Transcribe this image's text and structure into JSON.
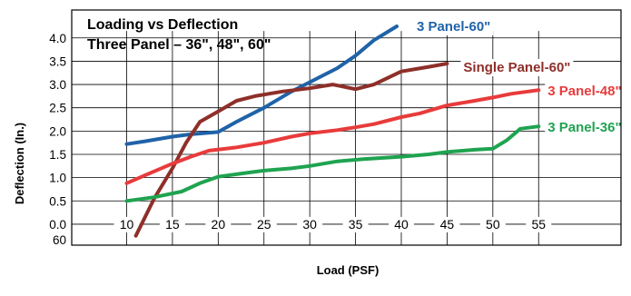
{
  "chart_data": {
    "type": "line",
    "title_line1": "Loading vs Deflection",
    "title_line2": "Three Panel – 36\", 48\", 60\"",
    "xlabel": "Load (PSF)",
    "ylabel": "Deflection (In.)",
    "x_ticks": [
      "10",
      "15",
      "20",
      "25",
      "30",
      "35",
      "40",
      "45",
      "50",
      "55"
    ],
    "y_ticks": [
      "4.0",
      "3.5",
      "3.0",
      "2.5",
      "2.0",
      "1.5",
      "1.0",
      "0.5",
      "0.0"
    ],
    "y_extra_label": "60",
    "xlim": [
      4,
      64
    ],
    "ylim": [
      -0.45,
      4.6
    ],
    "grid": true,
    "series": [
      {
        "name": "3 Panel-60\"",
        "color": "#1f63a8",
        "x": [
          10,
          12,
          15,
          17,
          20,
          22,
          25,
          28,
          30,
          33,
          35,
          37,
          39.5
        ],
        "y": [
          1.72,
          1.78,
          1.88,
          1.93,
          1.98,
          2.2,
          2.5,
          2.85,
          3.05,
          3.35,
          3.62,
          3.95,
          4.25
        ]
      },
      {
        "name": "Single Panel-60\"",
        "color": "#8e2f2a",
        "x": [
          11,
          13,
          15,
          16.5,
          18,
          20,
          22,
          24,
          27,
          30,
          32.5,
          35,
          37,
          40,
          43,
          45
        ],
        "y": [
          -0.25,
          0.55,
          1.2,
          1.75,
          2.2,
          2.42,
          2.65,
          2.75,
          2.85,
          2.92,
          3.0,
          2.9,
          3.0,
          3.28,
          3.38,
          3.45
        ]
      },
      {
        "name": "3 Panel-48\"",
        "color": "#e83b3b",
        "x": [
          10,
          12,
          15,
          17,
          19,
          22,
          25,
          28,
          30,
          33,
          35,
          37,
          40,
          42,
          45,
          48,
          50,
          52,
          55
        ],
        "y": [
          0.88,
          1.05,
          1.3,
          1.45,
          1.58,
          1.65,
          1.75,
          1.88,
          1.95,
          2.02,
          2.08,
          2.15,
          2.3,
          2.38,
          2.55,
          2.65,
          2.72,
          2.8,
          2.88
        ]
      },
      {
        "name": "3 Panel-36\"",
        "color": "#1fa350",
        "x": [
          10,
          13,
          16,
          18,
          20,
          23,
          25,
          28,
          30,
          33,
          36,
          40,
          43,
          45,
          48,
          50,
          51.5,
          53,
          55
        ],
        "y": [
          0.5,
          0.58,
          0.7,
          0.88,
          1.02,
          1.1,
          1.15,
          1.2,
          1.25,
          1.35,
          1.4,
          1.45,
          1.5,
          1.55,
          1.6,
          1.62,
          1.8,
          2.05,
          2.1
        ]
      }
    ]
  }
}
